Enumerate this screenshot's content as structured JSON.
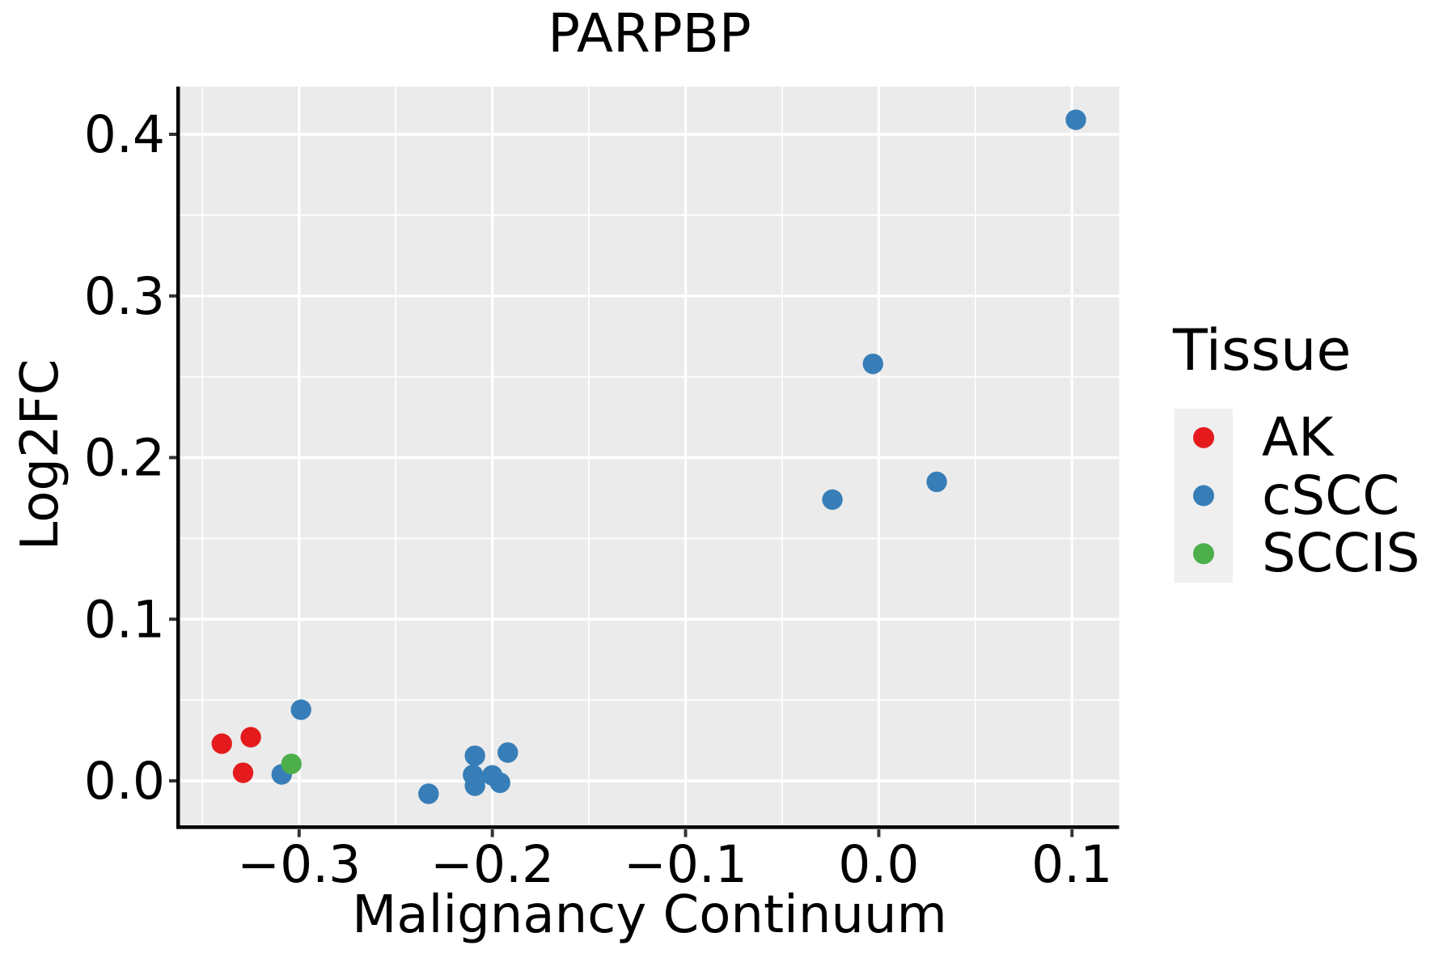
{
  "chart_data": {
    "type": "scatter",
    "title": "PARPBP",
    "xlabel": "Malignancy Continuum",
    "ylabel": "Log2FC",
    "xlim": [
      -0.362,
      0.124
    ],
    "ylim": [
      -0.0275,
      0.4295
    ],
    "x_ticks": [
      -0.3,
      -0.2,
      -0.1,
      0.0,
      0.1
    ],
    "x_tick_labels": [
      "−0.3",
      "−0.2",
      "−0.1",
      "0.0",
      "0.1"
    ],
    "x_minor_ticks": [
      -0.35,
      -0.25,
      -0.15,
      -0.05,
      0.05
    ],
    "y_ticks": [
      0.0,
      0.1,
      0.2,
      0.3,
      0.4
    ],
    "y_tick_labels": [
      "0.0",
      "0.1",
      "0.2",
      "0.3",
      "0.4"
    ],
    "y_minor_ticks": [
      0.05,
      0.15,
      0.25,
      0.35
    ],
    "grid": "on",
    "legend_position": "right",
    "panel_background": "#EBEBEB",
    "grid_color": "#FFFFFF",
    "axis_color": "#000000",
    "tick_color": "#333333",
    "text_color": "#000000",
    "legend": {
      "title": "Tissue",
      "key_background": "#EFEFEF",
      "entries": [
        {
          "label": "AK",
          "color": "#E41A1C"
        },
        {
          "label": "cSCC",
          "color": "#377EB8"
        },
        {
          "label": "SCCIS",
          "color": "#4DAF4A"
        }
      ]
    },
    "series": [
      {
        "name": "AK",
        "color": "#E41A1C",
        "points": [
          [
            -0.34,
            0.023
          ],
          [
            -0.325,
            0.027
          ],
          [
            -0.329,
            0.005
          ]
        ]
      },
      {
        "name": "cSCC",
        "color": "#377EB8",
        "points": [
          [
            -0.309,
            0.004
          ],
          [
            -0.299,
            0.044
          ],
          [
            -0.233,
            -0.008
          ],
          [
            -0.209,
            0.0155
          ],
          [
            -0.192,
            0.0175
          ],
          [
            -0.21,
            0.0037
          ],
          [
            -0.209,
            -0.003
          ],
          [
            -0.2,
            0.0034
          ],
          [
            -0.196,
            -0.0012
          ],
          [
            -0.024,
            0.174
          ],
          [
            -0.003,
            0.258
          ],
          [
            0.03,
            0.185
          ],
          [
            0.102,
            0.409
          ]
        ]
      },
      {
        "name": "SCCIS",
        "color": "#4DAF4A",
        "points": [
          [
            -0.304,
            0.0105
          ]
        ]
      }
    ]
  }
}
